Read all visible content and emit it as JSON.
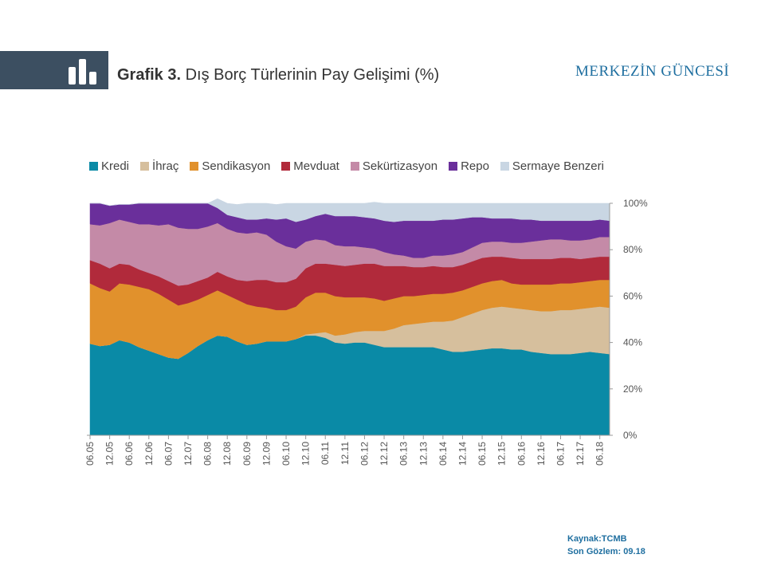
{
  "header": {
    "title_bold": "Grafik 3.",
    "title_rest": " Dış Borç Türlerinin  Pay Gelişimi (%)",
    "brand": "MERKEZİN GÜNCESİ",
    "logo_icon": "bar-chart-icon"
  },
  "source": {
    "line1": "Kaynak:TCMB",
    "line2": "Son Gözlem: 09.18"
  },
  "chart_data": {
    "type": "area",
    "stacked": true,
    "title": "Dış Borç Türlerinin Pay Gelişimi (%)",
    "ylim": [
      0,
      100
    ],
    "y_ticks": [
      "0%",
      "20%",
      "40%",
      "60%",
      "80%",
      "100%"
    ],
    "legend_position": "top",
    "x": [
      "06.05",
      "09.05",
      "12.05",
      "03.06",
      "06.06",
      "09.06",
      "12.06",
      "03.07",
      "06.07",
      "09.07",
      "12.07",
      "03.08",
      "06.08",
      "09.08",
      "12.08",
      "03.09",
      "06.09",
      "09.09",
      "12.09",
      "03.10",
      "06.10",
      "09.10",
      "12.10",
      "03.11",
      "06.11",
      "09.11",
      "12.11",
      "03.12",
      "06.12",
      "09.12",
      "12.12",
      "03.13",
      "06.13",
      "09.13",
      "12.13",
      "03.14",
      "06.14",
      "09.14",
      "12.14",
      "03.15",
      "06.15",
      "09.15",
      "12.15",
      "03.16",
      "06.16",
      "09.16",
      "12.16",
      "03.17",
      "06.17",
      "09.17",
      "12.17",
      "03.18",
      "06.18",
      "09.18"
    ],
    "x_tick_labels": [
      "06.05",
      "12.05",
      "06.06",
      "12.06",
      "06.07",
      "12.07",
      "06.08",
      "12.08",
      "06.09",
      "12.09",
      "06.10",
      "12.10",
      "06.11",
      "12.11",
      "06.12",
      "12.12",
      "06.13",
      "12.13",
      "06.14",
      "12.14",
      "06.15",
      "12.15",
      "06.16",
      "12.16",
      "06.17",
      "12.17",
      "06.18"
    ],
    "series": [
      {
        "name": "Kredi",
        "color": "#0a8aa6",
        "values": [
          39.5,
          38.5,
          39,
          41,
          40,
          38,
          36.5,
          35,
          33.5,
          33,
          35.5,
          38.5,
          41,
          43,
          42.5,
          40.5,
          39,
          39.5,
          40.5,
          40.5,
          40.5,
          41.5,
          43,
          43,
          42,
          40,
          39.5,
          40,
          40,
          39,
          38,
          38,
          38,
          38,
          38,
          38,
          37,
          36,
          36,
          36.5,
          37,
          37.5,
          37.5,
          37,
          37,
          36,
          35.5,
          35,
          35,
          35,
          35.5,
          36,
          35.5,
          35
        ]
      },
      {
        "name": "İhraç",
        "color": "#d6bf9d",
        "values": [
          0,
          0,
          0,
          0,
          0,
          0,
          0,
          0,
          0,
          0,
          0,
          0,
          0,
          0,
          0,
          0,
          0,
          0,
          0,
          0,
          0,
          0,
          0.5,
          1,
          2.5,
          3,
          4,
          4.5,
          5,
          6,
          7,
          8,
          9.5,
          10,
          10.5,
          11,
          12,
          13.5,
          15,
          16,
          17,
          17.5,
          18,
          18,
          17.5,
          18,
          18,
          18.5,
          19,
          19,
          19,
          19,
          20,
          20
        ]
      },
      {
        "name": "Sendikasyon",
        "color": "#e1912c",
        "values": [
          26,
          25,
          23,
          24.5,
          25,
          26,
          26.5,
          26,
          25,
          23,
          21.5,
          20,
          19.5,
          19.5,
          18,
          18,
          17.5,
          16,
          14.5,
          13.5,
          13.5,
          14,
          16,
          17.5,
          17,
          17,
          16,
          15,
          14.5,
          14,
          13,
          13,
          12.5,
          12,
          12,
          12,
          12,
          12,
          11.5,
          11.5,
          11.5,
          11.5,
          11.5,
          10.5,
          10.5,
          11,
          11.5,
          11.5,
          11.5,
          11.5,
          11.5,
          11.5,
          11.5,
          12
        ]
      },
      {
        "name": "Mevduat",
        "color": "#b12a3b",
        "values": [
          10,
          10.5,
          10,
          8.5,
          8.5,
          7.5,
          7,
          7.5,
          8,
          8.5,
          8,
          8,
          7.5,
          8,
          8,
          8.5,
          10,
          11.5,
          12,
          12,
          12,
          12,
          12.5,
          12.5,
          12.5,
          13.5,
          13.5,
          14,
          14.5,
          15,
          15,
          14,
          13,
          12.5,
          12,
          12,
          11.5,
          11,
          11,
          11,
          11,
          10.5,
          10,
          11,
          11,
          11,
          11,
          11,
          11,
          11,
          10,
          10,
          10,
          10
        ]
      },
      {
        "name": "Sekürtizasyon",
        "color": "#c48aa7",
        "values": [
          15.5,
          16.5,
          19.5,
          19,
          18.5,
          19.5,
          21,
          22,
          24.5,
          25,
          24,
          22.5,
          22,
          21,
          20.5,
          20.5,
          20.5,
          20.5,
          19.5,
          17.5,
          15.5,
          13,
          11.5,
          10.5,
          10,
          8.5,
          8.5,
          8,
          7,
          6.5,
          6,
          5,
          4.5,
          4,
          4,
          4.5,
          5,
          5.5,
          5.5,
          6,
          6.5,
          6.5,
          6.5,
          6.5,
          7,
          7.5,
          8,
          8.5,
          8,
          7.5,
          8,
          8,
          8.5,
          8.5
        ]
      },
      {
        "name": "Repo",
        "color": "#6a2f9b",
        "values": [
          9,
          9.5,
          7.5,
          6.5,
          7.5,
          9,
          9,
          9.5,
          9,
          10.5,
          11,
          11,
          10,
          6.5,
          6,
          6.5,
          6,
          5.5,
          7,
          9.5,
          12,
          11.5,
          9.5,
          10,
          11.5,
          12.5,
          13,
          13,
          13,
          13,
          13.5,
          14,
          15,
          16,
          16,
          15,
          15.5,
          15,
          14.5,
          13,
          11,
          10,
          10,
          10.5,
          10,
          9.5,
          8.5,
          8,
          8,
          8.5,
          8.5,
          8,
          7.5,
          7
        ]
      },
      {
        "name": "Sermaye Benzeri",
        "color": "#c9d6e3",
        "values": [
          0,
          0,
          0,
          0,
          0,
          0,
          0,
          0,
          0,
          0,
          0,
          0,
          0,
          4,
          5,
          5.5,
          7,
          7,
          6.5,
          6.5,
          6.5,
          8,
          7,
          5.5,
          4.5,
          5.5,
          5.5,
          5.5,
          6,
          7,
          7.5,
          8,
          7.5,
          7.5,
          7.5,
          7.5,
          7,
          7,
          6.5,
          6,
          6,
          6.5,
          6.5,
          6.5,
          7,
          7,
          7.5,
          7.5,
          7.5,
          7.5,
          7.5,
          7.5,
          7,
          7.5
        ]
      }
    ]
  }
}
